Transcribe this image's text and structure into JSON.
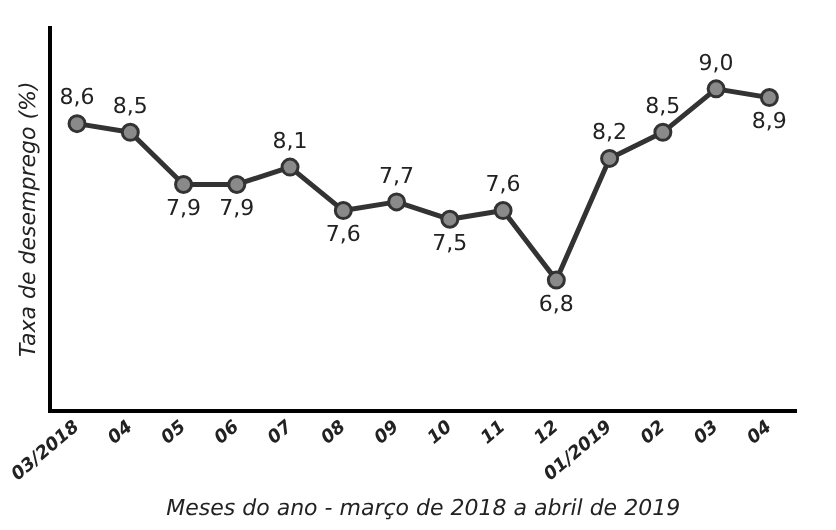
{
  "chart_data": {
    "type": "line",
    "ylabel": "Taxa de desemprego (%)",
    "xlabel": "Meses do ano - março de 2018 a abril de 2019",
    "categories": [
      "03/2018",
      "04",
      "05",
      "06",
      "07",
      "08",
      "09",
      "10",
      "11",
      "12",
      "01/2019",
      "02",
      "03",
      "04"
    ],
    "series": [
      {
        "color": "#333333",
        "values": [
          8.6,
          8.5,
          7.9,
          7.9,
          8.1,
          7.6,
          7.7,
          7.5,
          7.6,
          6.8,
          8.2,
          8.5,
          9.0,
          8.9
        ],
        "value_labels": [
          "8,6",
          "8,5",
          "7,9",
          "7,9",
          "8,1",
          "7,6",
          "7,7",
          "7,5",
          "7,6",
          "6,8",
          "8,2",
          "8,5",
          "9,0",
          "8,9"
        ]
      }
    ],
    "ylim": [
      5.3,
      9.7
    ],
    "tick_labels": "x",
    "marker": "circle",
    "line_style": "solid",
    "grid": false,
    "legend": false
  }
}
